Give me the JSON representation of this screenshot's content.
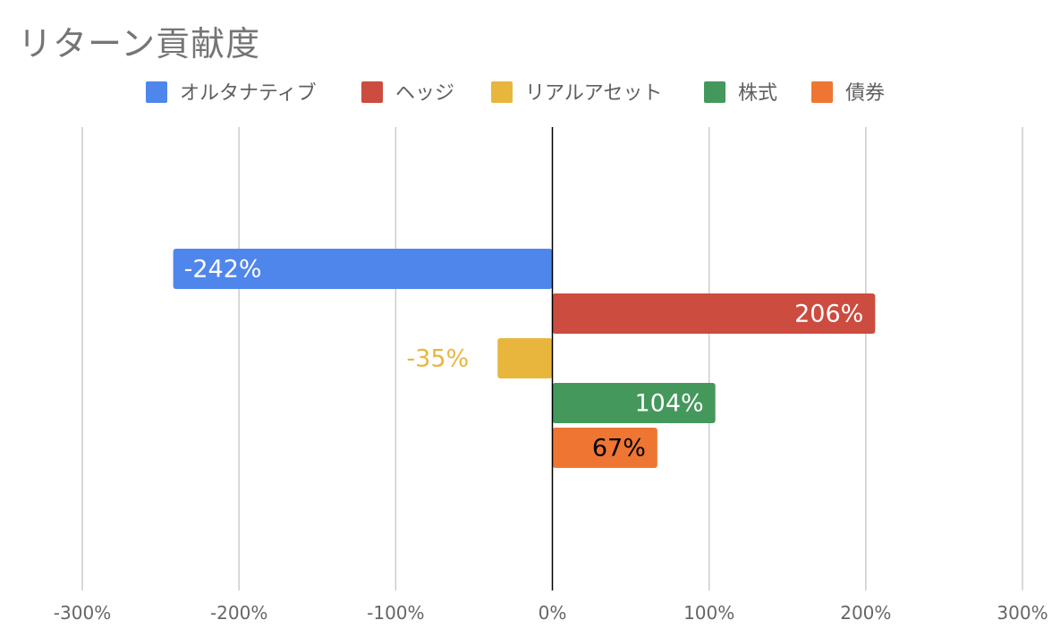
{
  "chart_data": {
    "type": "bar",
    "orientation": "horizontal",
    "title": "リターン貢献度",
    "xlabel": "",
    "ylabel": "",
    "xlim": [
      -300,
      300
    ],
    "x_ticks": [
      "-300%",
      "-200%",
      "-100%",
      "0%",
      "100%",
      "200%",
      "300%"
    ],
    "x_tick_values": [
      -300,
      -200,
      -100,
      0,
      100,
      200,
      300
    ],
    "grid": true,
    "legend_position": "top",
    "series": [
      {
        "name": "オルタナティブ",
        "value": -242,
        "label": "-242%",
        "color": "#4F86EC",
        "label_color": "#ffffff",
        "label_position": "inside-end"
      },
      {
        "name": "ヘッジ",
        "value": 206,
        "label": "206%",
        "color": "#CC4C3F",
        "label_color": "#ffffff",
        "label_position": "inside-end"
      },
      {
        "name": "リアルアセット",
        "value": -35,
        "label": "-35%",
        "color": "#E8B63D",
        "label_color": "#E8B63D",
        "label_position": "outside-end"
      },
      {
        "name": "株式",
        "value": 104,
        "label": "104%",
        "color": "#44985C",
        "label_color": "#ffffff",
        "label_position": "inside-end"
      },
      {
        "name": "債券",
        "value": 67,
        "label": "67%",
        "color": "#EE7632",
        "label_color": "#000000",
        "label_position": "inside-end"
      }
    ]
  }
}
